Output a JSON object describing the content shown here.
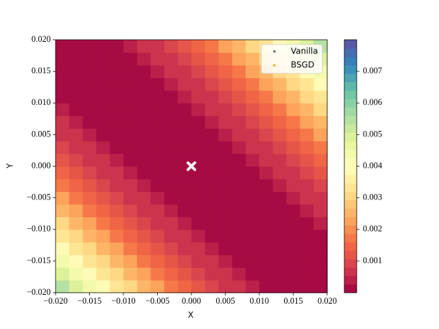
{
  "chart_data": {
    "type": "heatmap",
    "xlabel": "X",
    "ylabel": "Y",
    "x": [
      -0.019,
      -0.017,
      -0.015,
      -0.013,
      -0.011,
      -0.009,
      -0.007,
      -0.005,
      -0.003,
      -0.001,
      0.001,
      0.003,
      0.005,
      0.007,
      0.009,
      0.011,
      0.013,
      0.015,
      0.017,
      0.019
    ],
    "y": [
      -0.019,
      -0.017,
      -0.015,
      -0.013,
      -0.011,
      -0.009,
      -0.007,
      -0.005,
      -0.003,
      -0.001,
      0.001,
      0.003,
      0.005,
      0.007,
      0.009,
      0.011,
      0.013,
      0.015,
      0.017,
      0.019
    ],
    "z": [
      [
        0.00542,
        0.00486,
        0.00434,
        0.00384,
        0.00338,
        0.00294,
        0.00254,
        0.00216,
        0.00182,
        0.0015,
        0.00122,
        0.00096,
        0.00074,
        0.00054,
        0.00038,
        0.00024,
        0.00014,
        6e-05,
        2e-05,
        0
      ],
      [
        0.00486,
        0.00434,
        0.00384,
        0.00338,
        0.00294,
        0.00254,
        0.00216,
        0.00182,
        0.0015,
        0.00122,
        0.00096,
        0.00074,
        0.00054,
        0.00038,
        0.00024,
        0.00014,
        6e-05,
        2e-05,
        0,
        2e-05
      ],
      [
        0.00434,
        0.00384,
        0.00338,
        0.00294,
        0.00254,
        0.00216,
        0.00182,
        0.0015,
        0.00122,
        0.00096,
        0.00074,
        0.00054,
        0.00038,
        0.00024,
        0.00014,
        6e-05,
        2e-05,
        0,
        2e-05,
        6e-05
      ],
      [
        0.00384,
        0.00338,
        0.00294,
        0.00254,
        0.00216,
        0.00182,
        0.0015,
        0.00122,
        0.00096,
        0.00074,
        0.00054,
        0.00038,
        0.00024,
        0.00014,
        6e-05,
        2e-05,
        0,
        2e-05,
        6e-05,
        0.00014
      ],
      [
        0.00338,
        0.00294,
        0.00254,
        0.00216,
        0.00182,
        0.0015,
        0.00122,
        0.00096,
        0.00074,
        0.00054,
        0.00038,
        0.00024,
        0.00014,
        6e-05,
        2e-05,
        0,
        2e-05,
        6e-05,
        0.00014,
        0.00024
      ],
      [
        0.00294,
        0.00254,
        0.00216,
        0.00182,
        0.0015,
        0.00122,
        0.00096,
        0.00074,
        0.00054,
        0.00038,
        0.00024,
        0.00014,
        6e-05,
        2e-05,
        0,
        2e-05,
        6e-05,
        0.00014,
        0.00024,
        0.00038
      ],
      [
        0.00254,
        0.00216,
        0.00182,
        0.0015,
        0.00122,
        0.00096,
        0.00074,
        0.00054,
        0.00038,
        0.00024,
        0.00014,
        6e-05,
        2e-05,
        0,
        2e-05,
        6e-05,
        0.00014,
        0.00024,
        0.00038,
        0.00054
      ],
      [
        0.00216,
        0.00182,
        0.0015,
        0.00122,
        0.00096,
        0.00074,
        0.00054,
        0.00038,
        0.00024,
        0.00014,
        6e-05,
        2e-05,
        0,
        2e-05,
        6e-05,
        0.00014,
        0.00024,
        0.00038,
        0.00054,
        0.00074
      ],
      [
        0.00182,
        0.0015,
        0.00122,
        0.00096,
        0.00074,
        0.00054,
        0.00038,
        0.00024,
        0.00014,
        6e-05,
        2e-05,
        0,
        2e-05,
        6e-05,
        0.00014,
        0.00024,
        0.00038,
        0.00054,
        0.00074,
        0.00096
      ],
      [
        0.0015,
        0.00122,
        0.00096,
        0.00074,
        0.00054,
        0.00038,
        0.00024,
        0.00014,
        6e-05,
        2e-05,
        0,
        2e-05,
        6e-05,
        0.00014,
        0.00024,
        0.00038,
        0.00054,
        0.00074,
        0.00096,
        0.00122
      ],
      [
        0.00122,
        0.00096,
        0.00074,
        0.00054,
        0.00038,
        0.00024,
        0.00014,
        6e-05,
        2e-05,
        0,
        2e-05,
        6e-05,
        0.00014,
        0.00024,
        0.00038,
        0.00054,
        0.00074,
        0.00096,
        0.00122,
        0.0015
      ],
      [
        0.00096,
        0.00074,
        0.00054,
        0.00038,
        0.00024,
        0.00014,
        6e-05,
        2e-05,
        0,
        2e-05,
        6e-05,
        0.00014,
        0.00024,
        0.00038,
        0.00054,
        0.00074,
        0.00096,
        0.00122,
        0.0015,
        0.00182
      ],
      [
        0.00074,
        0.00054,
        0.00038,
        0.00024,
        0.00014,
        6e-05,
        2e-05,
        0,
        2e-05,
        6e-05,
        0.00014,
        0.00024,
        0.00038,
        0.00054,
        0.00074,
        0.00096,
        0.00122,
        0.0015,
        0.00182,
        0.00216
      ],
      [
        0.00054,
        0.00038,
        0.00024,
        0.00014,
        6e-05,
        2e-05,
        0,
        2e-05,
        6e-05,
        0.00014,
        0.00024,
        0.00038,
        0.00054,
        0.00074,
        0.00096,
        0.00122,
        0.0015,
        0.00182,
        0.00216,
        0.00254
      ],
      [
        0.00038,
        0.00024,
        0.00014,
        6e-05,
        2e-05,
        0,
        2e-05,
        6e-05,
        0.00014,
        0.00024,
        0.00038,
        0.00054,
        0.00074,
        0.00096,
        0.00122,
        0.0015,
        0.00182,
        0.00216,
        0.00254,
        0.00294
      ],
      [
        0.00024,
        0.00014,
        6e-05,
        2e-05,
        0,
        2e-05,
        6e-05,
        0.00014,
        0.00024,
        0.00038,
        0.00054,
        0.00074,
        0.00096,
        0.00122,
        0.0015,
        0.00182,
        0.00216,
        0.00254,
        0.00294,
        0.00338
      ],
      [
        0.00014,
        6e-05,
        2e-05,
        0,
        2e-05,
        6e-05,
        0.00014,
        0.00024,
        0.00038,
        0.00054,
        0.00074,
        0.00096,
        0.00122,
        0.0015,
        0.00182,
        0.00216,
        0.00254,
        0.00294,
        0.00338,
        0.00384
      ],
      [
        6e-05,
        2e-05,
        0,
        2e-05,
        6e-05,
        0.00014,
        0.00024,
        0.00038,
        0.00054,
        0.00074,
        0.00096,
        0.00122,
        0.0015,
        0.00182,
        0.00216,
        0.00254,
        0.00294,
        0.00338,
        0.00384,
        0.00434
      ],
      [
        2e-05,
        0,
        2e-05,
        6e-05,
        0.00014,
        0.00024,
        0.00038,
        0.00054,
        0.00074,
        0.00096,
        0.00122,
        0.0015,
        0.00182,
        0.00216,
        0.00254,
        0.00294,
        0.00338,
        0.00384,
        0.00434,
        0.00486
      ],
      [
        0,
        2e-05,
        6e-05,
        0.00014,
        0.00024,
        0.00038,
        0.00054,
        0.00074,
        0.00096,
        0.00122,
        0.0015,
        0.00182,
        0.00216,
        0.00254,
        0.00294,
        0.00338,
        0.00384,
        0.00434,
        0.00486,
        0.00542
      ]
    ],
    "xlim": [
      -0.02,
      0.02
    ],
    "ylim": [
      -0.02,
      0.02
    ],
    "xticks": [
      {
        "value": -0.02,
        "label": "−0.020"
      },
      {
        "value": -0.015,
        "label": "−0.015"
      },
      {
        "value": -0.01,
        "label": "−0.010"
      },
      {
        "value": -0.005,
        "label": "−0.005"
      },
      {
        "value": 0,
        "label": "0.000"
      },
      {
        "value": 0.005,
        "label": "0.005"
      },
      {
        "value": 0.01,
        "label": "0.010"
      },
      {
        "value": 0.015,
        "label": "0.015"
      },
      {
        "value": 0.02,
        "label": "0.020"
      }
    ],
    "yticks": [
      {
        "value": -0.02,
        "label": "−0.020"
      },
      {
        "value": -0.015,
        "label": "−0.015"
      },
      {
        "value": -0.01,
        "label": "−0.010"
      },
      {
        "value": -0.005,
        "label": "−0.005"
      },
      {
        "value": 0,
        "label": "0.000"
      },
      {
        "value": 0.005,
        "label": "0.005"
      },
      {
        "value": 0.01,
        "label": "0.010"
      },
      {
        "value": 0.015,
        "label": "0.015"
      },
      {
        "value": 0.02,
        "label": "0.020"
      }
    ],
    "colormap": "Spectral_r",
    "colorbar_lim": [
      0,
      0.008
    ],
    "colorbar_ticks": [
      0.001,
      0.002,
      0.003,
      0.004,
      0.005,
      0.006,
      0.007
    ],
    "optimum": {
      "x": 0,
      "y": 0,
      "color": "#ffffff"
    },
    "series": [
      {
        "name": "Vanilla",
        "color": "#808080",
        "marker": "circle",
        "x": [],
        "values": []
      },
      {
        "name": "BSGD",
        "color": "#ffa500",
        "marker": "triangle",
        "x": [],
        "values": []
      }
    ],
    "legend": "upper right"
  }
}
